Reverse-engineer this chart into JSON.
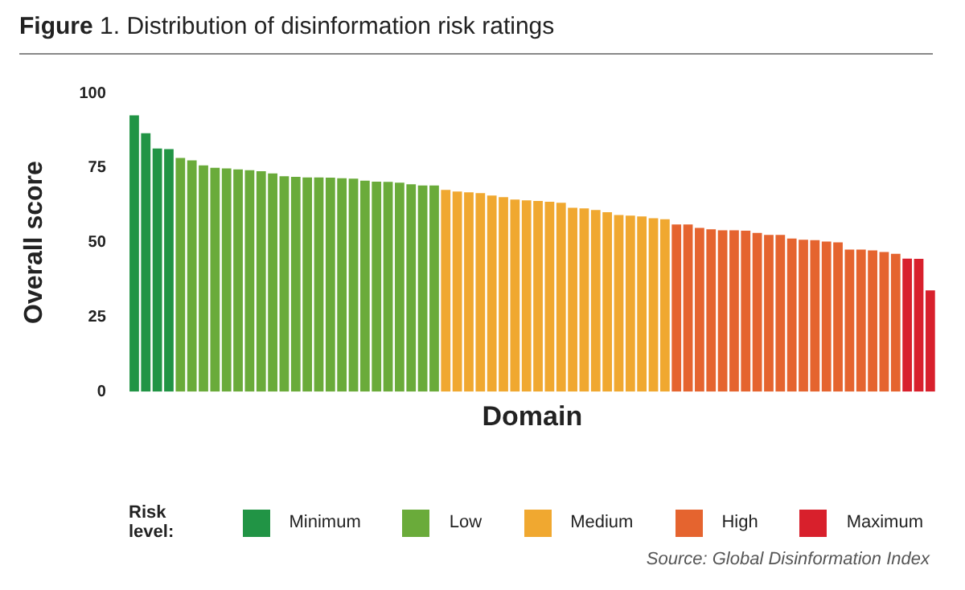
{
  "chart_data": {
    "type": "bar",
    "title": "Figure 1. Distribution of disinformation risk ratings",
    "xlabel": "Domain",
    "ylabel": "Overall score",
    "legend_title": "Risk level:",
    "legend": "bottom",
    "stacked": true,
    "grid": false,
    "tick_labels": "y",
    "ylim": [
      0,
      100
    ],
    "yticks": [
      0,
      25,
      50,
      75,
      100
    ],
    "categories": [
      null,
      null,
      null,
      null,
      null,
      null,
      null,
      null,
      null,
      null,
      null,
      null,
      null,
      null,
      null,
      null,
      null,
      null,
      null,
      null,
      null,
      null,
      null,
      null,
      null,
      null,
      null,
      null,
      null,
      null,
      null,
      null,
      null,
      null,
      null,
      null,
      null,
      null,
      null,
      null,
      null,
      null,
      null,
      null,
      null,
      null,
      null,
      null,
      null,
      null,
      null,
      null,
      null,
      null,
      null,
      null,
      null,
      null,
      null,
      null,
      null,
      null,
      null,
      null,
      null,
      null,
      null,
      null,
      null,
      null
    ],
    "series": [
      {
        "name": "Minimum",
        "color": "#219445",
        "values": [
          92.6,
          86.6,
          81.5,
          81.3,
          null,
          null,
          null,
          null,
          null,
          null,
          null,
          null,
          null,
          null,
          null,
          null,
          null,
          null,
          null,
          null,
          null,
          null,
          null,
          null,
          null,
          null,
          null,
          null,
          null,
          null,
          null,
          null,
          null,
          null,
          null,
          null,
          null,
          null,
          null,
          null,
          null,
          null,
          null,
          null,
          null,
          null,
          null,
          null,
          null,
          null,
          null,
          null,
          null,
          null,
          null,
          null,
          null,
          null,
          null,
          null,
          null,
          null,
          null,
          null,
          null,
          null,
          null,
          null,
          null,
          null
        ]
      },
      {
        "name": "Low",
        "color": "#6aab3a",
        "values": [
          null,
          null,
          null,
          null,
          78.3,
          77.5,
          75.8,
          75.0,
          74.8,
          74.5,
          74.2,
          73.9,
          73.1,
          72.2,
          72.0,
          71.8,
          71.8,
          71.7,
          71.5,
          71.4,
          70.7,
          70.4,
          70.3,
          70.0,
          69.5,
          69.1,
          69.1,
          null,
          null,
          null,
          null,
          null,
          null,
          null,
          null,
          null,
          null,
          null,
          null,
          null,
          null,
          null,
          null,
          null,
          null,
          null,
          null,
          null,
          null,
          null,
          null,
          null,
          null,
          null,
          null,
          null,
          null,
          null,
          null,
          null,
          null,
          null,
          null,
          null,
          null,
          null,
          null,
          null,
          null,
          null
        ]
      },
      {
        "name": "Medium",
        "color": "#f0a830",
        "values": [
          null,
          null,
          null,
          null,
          null,
          null,
          null,
          null,
          null,
          null,
          null,
          null,
          null,
          null,
          null,
          null,
          null,
          null,
          null,
          null,
          null,
          null,
          null,
          null,
          null,
          null,
          null,
          67.6,
          67.1,
          66.8,
          66.5,
          65.7,
          65.2,
          64.4,
          64.1,
          63.9,
          63.6,
          63.3,
          61.6,
          61.4,
          60.9,
          60.1,
          59.2,
          59.0,
          58.7,
          58.1,
          57.8,
          null,
          null,
          null,
          null,
          null,
          null,
          null,
          null,
          null,
          null,
          null,
          null,
          null,
          null,
          null,
          null,
          null,
          null,
          null,
          null,
          null,
          null,
          null
        ]
      },
      {
        "name": "High",
        "color": "#e5642f",
        "values": [
          null,
          null,
          null,
          null,
          null,
          null,
          null,
          null,
          null,
          null,
          null,
          null,
          null,
          null,
          null,
          null,
          null,
          null,
          null,
          null,
          null,
          null,
          null,
          null,
          null,
          null,
          null,
          null,
          null,
          null,
          null,
          null,
          null,
          null,
          null,
          null,
          null,
          null,
          null,
          null,
          null,
          null,
          null,
          null,
          null,
          null,
          null,
          56.0,
          56.0,
          54.9,
          54.4,
          54.1,
          54.1,
          53.9,
          53.2,
          52.5,
          52.5,
          51.3,
          50.9,
          50.8,
          50.3,
          50.0,
          47.6,
          47.6,
          47.3,
          46.8,
          46.2,
          null,
          null,
          null
        ]
      },
      {
        "name": "Maximum",
        "color": "#d8202c",
        "values": [
          null,
          null,
          null,
          null,
          null,
          null,
          null,
          null,
          null,
          null,
          null,
          null,
          null,
          null,
          null,
          null,
          null,
          null,
          null,
          null,
          null,
          null,
          null,
          null,
          null,
          null,
          null,
          null,
          null,
          null,
          null,
          null,
          null,
          null,
          null,
          null,
          null,
          null,
          null,
          null,
          null,
          null,
          null,
          null,
          null,
          null,
          null,
          null,
          null,
          null,
          null,
          null,
          null,
          null,
          null,
          null,
          null,
          null,
          null,
          null,
          null,
          null,
          null,
          null,
          null,
          null,
          null,
          44.6,
          44.5,
          33.9
        ]
      }
    ],
    "annotations": [
      "Source: Global Disinformation Index"
    ]
  }
}
